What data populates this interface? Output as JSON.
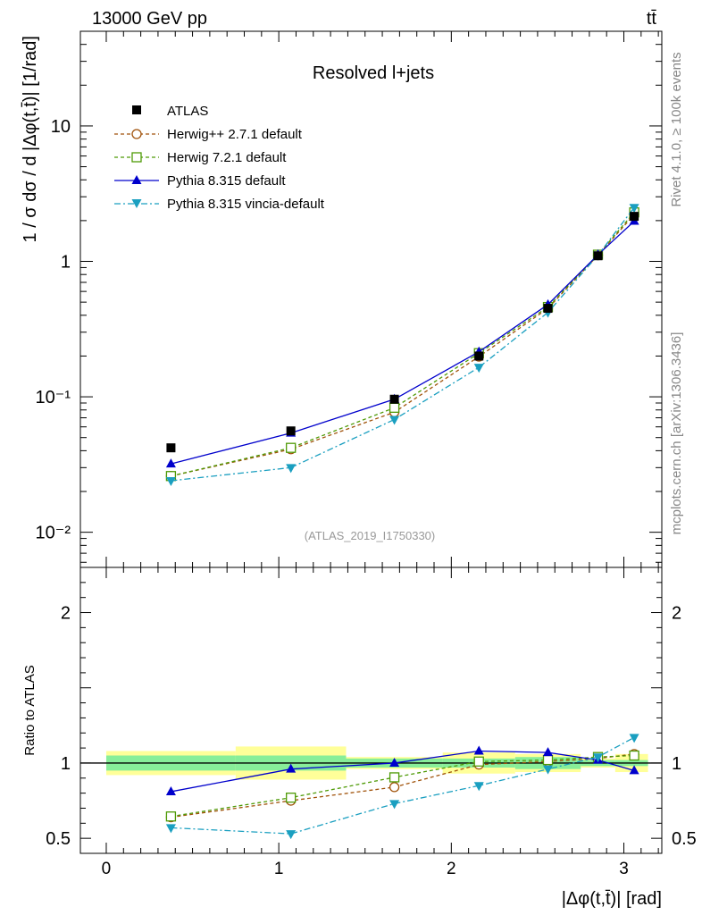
{
  "header": {
    "energy": "13000 GeV pp",
    "process": "tt̄",
    "rivet": "Rivet 4.1.0, ≥ 100k events",
    "source": "mcplots.cern.ch [arXiv:1306.3436]",
    "analysis": "(ATLAS_2019_I1750330)"
  },
  "chart_data": [
    {
      "type": "line",
      "panel": "main",
      "title": "Resolved l+jets",
      "xlabel": "|Δφ(t,t̄)| [rad]",
      "ylabel": "1 / σ dσ / d |Δφ(t,t̄)| [1/rad]",
      "yscale": "log",
      "xlim": [
        -0.15,
        3.22
      ],
      "ylim": [
        0.0055,
        50
      ],
      "y_ticks": [
        {
          "value": 0.01,
          "label": "10⁻²"
        },
        {
          "value": 0.1,
          "label": "10⁻¹"
        },
        {
          "value": 1,
          "label": "1"
        },
        {
          "value": 10,
          "label": "10"
        }
      ],
      "x": [
        0.375,
        1.07,
        1.67,
        2.16,
        2.56,
        2.85,
        3.06
      ],
      "x_edges": [
        0.0,
        0.75,
        1.39,
        1.95,
        2.37,
        2.75,
        2.95,
        3.14
      ],
      "series": [
        {
          "name": "ATLAS",
          "style": "data",
          "color": "#000000",
          "values": [
            0.042,
            0.056,
            0.096,
            0.2,
            0.45,
            1.1,
            2.15
          ]
        },
        {
          "name": "Herwig++ 2.7.1 default",
          "style": "dashed",
          "marker": "circle-open",
          "color": "#a0520a",
          "values": [
            0.026,
            0.041,
            0.077,
            0.198,
            0.45,
            1.11,
            2.22
          ]
        },
        {
          "name": "Herwig 7.2.1 default",
          "style": "dashed",
          "marker": "square-open",
          "color": "#4e9a06",
          "values": [
            0.026,
            0.042,
            0.083,
            0.21,
            0.46,
            1.12,
            2.3
          ]
        },
        {
          "name": "Pythia 8.315 default",
          "style": "solid",
          "marker": "triangle-up",
          "color": "#0000cc",
          "values": [
            0.032,
            0.054,
            0.096,
            0.215,
            0.48,
            1.12,
            1.98
          ]
        },
        {
          "name": "Pythia 8.315 vincia-default",
          "style": "dashdot",
          "marker": "triangle-down",
          "color": "#1a9fc0",
          "values": [
            0.024,
            0.03,
            0.068,
            0.165,
            0.42,
            1.11,
            2.5
          ]
        }
      ]
    },
    {
      "type": "line",
      "panel": "ratio",
      "ylabel": "Ratio to ATLAS",
      "xlabel": "|Δφ(t,t̄)| [rad]",
      "xlim": [
        -0.15,
        3.22
      ],
      "ylim": [
        0.4,
        2.3
      ],
      "y_ticks": [
        {
          "value": 0.5,
          "label": "0.5"
        },
        {
          "value": 1,
          "label": "1"
        },
        {
          "value": 2,
          "label": "2"
        }
      ],
      "x_ticks": [
        {
          "value": 0,
          "label": "0"
        },
        {
          "value": 1,
          "label": "1"
        },
        {
          "value": 2,
          "label": "2"
        },
        {
          "value": 3,
          "label": "3"
        }
      ],
      "x": [
        0.375,
        1.07,
        1.67,
        2.16,
        2.56,
        2.85,
        3.06
      ],
      "band_stat": [
        0.05,
        0.05,
        0.03,
        0.03,
        0.04,
        0.02,
        0.02
      ],
      "band_total": [
        0.08,
        0.11,
        0.04,
        0.07,
        0.06,
        0.03,
        0.06
      ],
      "series": [
        {
          "name": "Herwig++ 2.7.1 default",
          "style": "dashed",
          "marker": "circle-open",
          "color": "#a0520a",
          "values": [
            0.64,
            0.75,
            0.84,
            0.99,
            1.01,
            1.03,
            1.06
          ]
        },
        {
          "name": "Herwig 7.2.1 default",
          "style": "dashed",
          "marker": "square-open",
          "color": "#4e9a06",
          "values": [
            0.645,
            0.77,
            0.905,
            1.01,
            1.02,
            1.04,
            1.05
          ]
        },
        {
          "name": "Pythia 8.315 default",
          "style": "solid",
          "marker": "triangle-up",
          "color": "#0000cc",
          "values": [
            0.81,
            0.96,
            1.0,
            1.08,
            1.07,
            1.02,
            0.95
          ]
        },
        {
          "name": "Pythia 8.315 vincia-default",
          "style": "dashdot",
          "marker": "triangle-down",
          "color": "#1a9fc0",
          "values": [
            0.57,
            0.53,
            0.73,
            0.85,
            0.96,
            1.04,
            1.17
          ]
        }
      ]
    }
  ]
}
